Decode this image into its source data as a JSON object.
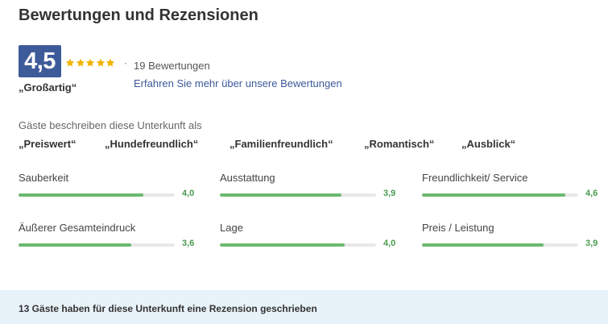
{
  "section": {
    "title": "Bewertungen und Rezensionen"
  },
  "summary": {
    "score": "4,5",
    "star_count": 5,
    "star_color": "#f0b400",
    "separator": "·",
    "review_count": "19 Bewertungen",
    "verdict": "„Großartig“",
    "learn_more": "Erfahren Sie mehr über unsere Bewertungen"
  },
  "guests": {
    "intro": "Gäste beschreiben diese Unterkunft als",
    "tags": [
      "„Preiswert“",
      "„Hundefreundlich“",
      "„Familienfreundlich“",
      "„Romantisch“",
      "„Ausblick“"
    ]
  },
  "criteria": [
    {
      "label": "Sauberkeit",
      "value": "4,0",
      "score": 4.0
    },
    {
      "label": "Ausstattung",
      "value": "3,9",
      "score": 3.9
    },
    {
      "label": "Freundlichkeit/ Service",
      "value": "4,6",
      "score": 4.6
    },
    {
      "label": "Äußerer Gesamteindruck",
      "value": "3,6",
      "score": 3.6
    },
    {
      "label": "Lage",
      "value": "4,0",
      "score": 4.0
    },
    {
      "label": "Preis / Leistung",
      "value": "3,9",
      "score": 3.9
    }
  ],
  "criteria_max": 5,
  "colors": {
    "score_badge": "#3d5a99",
    "bar_fill": "#6bb96f",
    "bar_track": "#e8e8e8",
    "value_text": "#4a9a4f",
    "footer_bg": "#e8f2f9"
  },
  "footer": {
    "text": "13 Gäste haben für diese Unterkunft eine Rezension geschrieben"
  }
}
